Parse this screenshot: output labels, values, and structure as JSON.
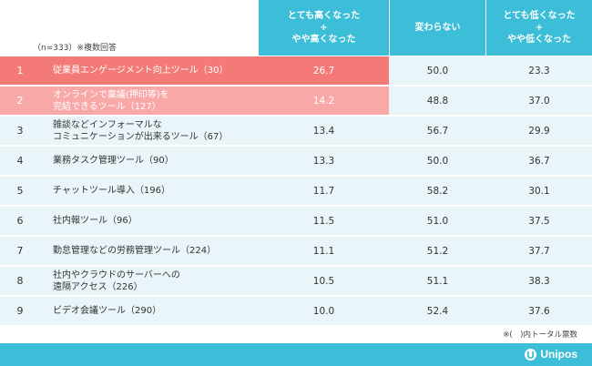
{
  "header": {
    "note": "（n=333）※複数回答",
    "col1": "とても高くなった\n+\nやや高くなった",
    "col2": "変わらない",
    "col3": "とても低くなった\n+\nやや低くなった"
  },
  "rows": [
    {
      "rank": "1",
      "label": "従業員エンゲージメント向上ツール（30）",
      "v1": "26.7",
      "v2": "50.0",
      "v3": "23.3"
    },
    {
      "rank": "2",
      "label": "オンラインで稟議(押印等)を\n完結できるツール（127）",
      "v1": "14.2",
      "v2": "48.8",
      "v3": "37.0"
    },
    {
      "rank": "3",
      "label": "雑談などインフォーマルな\nコミュニケーションが出来るツール（67）",
      "v1": "13.4",
      "v2": "56.7",
      "v3": "29.9"
    },
    {
      "rank": "4",
      "label": "業務タスク管理ツール（90）",
      "v1": "13.3",
      "v2": "50.0",
      "v3": "36.7"
    },
    {
      "rank": "5",
      "label": "チャットツール導入（196）",
      "v1": "11.7",
      "v2": "58.2",
      "v3": "30.1"
    },
    {
      "rank": "6",
      "label": "社内報ツール（96）",
      "v1": "11.5",
      "v2": "51.0",
      "v3": "37.5"
    },
    {
      "rank": "7",
      "label": "勤怠管理などの労務管理ツール（224）",
      "v1": "11.1",
      "v2": "51.2",
      "v3": "37.7"
    },
    {
      "rank": "8",
      "label": "社内やクラウドのサーバーへの\n遠隔アクセス（226）",
      "v1": "10.5",
      "v2": "51.1",
      "v3": "38.3"
    },
    {
      "rank": "9",
      "label": "ビデオ会議ツール（290）",
      "v1": "10.0",
      "v2": "52.4",
      "v3": "37.6"
    }
  ],
  "footnote": "※(　)内トータル票数",
  "brand": {
    "name": "Unipos",
    "icon": "unipos-logo-icon"
  },
  "colors": {
    "accent": "#3cbdd8",
    "row_bg": "#eaf5fa",
    "highlight_1": "#f47a78",
    "highlight_2": "#f9a8a8"
  }
}
